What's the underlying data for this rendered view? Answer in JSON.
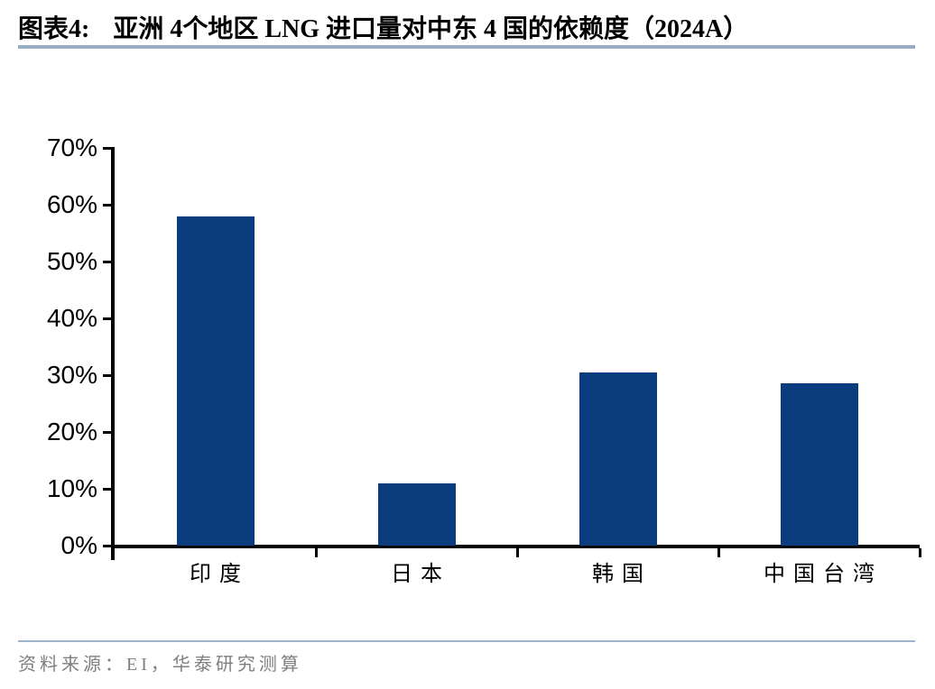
{
  "header": {
    "label": "图表4:",
    "title": "亚洲 4个地区 LNG 进口量对中东 4 国的依赖度（2024A）"
  },
  "chart_data": {
    "type": "bar",
    "title": "亚洲 4个地区 LNG 进口量对中东 4 国的依赖度（2024A）",
    "categories": [
      "印度",
      "日本",
      "韩国",
      "中国台湾"
    ],
    "values": [
      58,
      11,
      30.5,
      28.5
    ],
    "value_unit": "%",
    "ylim": [
      0,
      70
    ],
    "yticks": [
      0,
      10,
      20,
      30,
      40,
      50,
      60,
      70
    ],
    "ytick_labels": [
      "0%",
      "10%",
      "20%",
      "30%",
      "40%",
      "50%",
      "60%",
      "70%"
    ],
    "xlabel": "",
    "ylabel": "",
    "grid": false,
    "legend": "none",
    "bar_color": "#0B3C7D"
  },
  "footer": {
    "source": "资料来源：EI，华泰研究测算"
  },
  "colors": {
    "bar": "#0B3C7D",
    "title_underline": "#98ACC4",
    "footer_divider": "#9FB4CC",
    "source_text": "#7F7F7F",
    "axis": "#000000",
    "background": "#FFFFFF"
  }
}
